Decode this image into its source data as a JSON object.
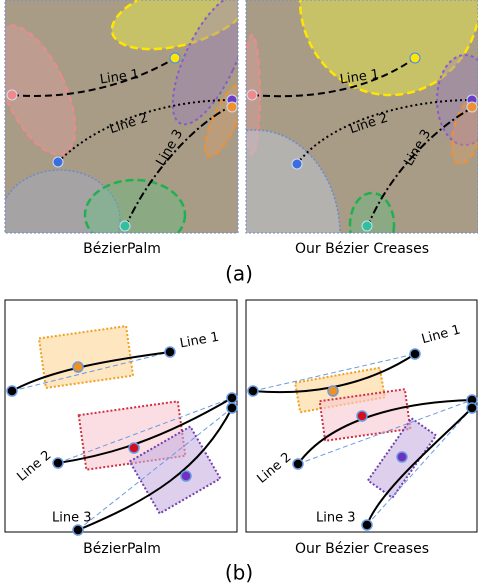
{
  "panel_a": {
    "label": "(a)",
    "left": {
      "caption": "BézierPalm",
      "lines": [
        "Line 1",
        "Line 2",
        "Line 3"
      ]
    },
    "right": {
      "caption": "Our Bézier Creases",
      "lines": [
        "Line 1",
        "Line 2",
        "Line 3"
      ]
    }
  },
  "panel_b": {
    "label": "(b)",
    "left": {
      "caption": "BézierPalm",
      "lines": [
        "Line 1",
        "Line 2",
        "Line 3"
      ]
    },
    "right": {
      "caption": "Our Bézier Creases",
      "lines": [
        "Line 1",
        "Line 2",
        "Line 3"
      ]
    }
  }
}
